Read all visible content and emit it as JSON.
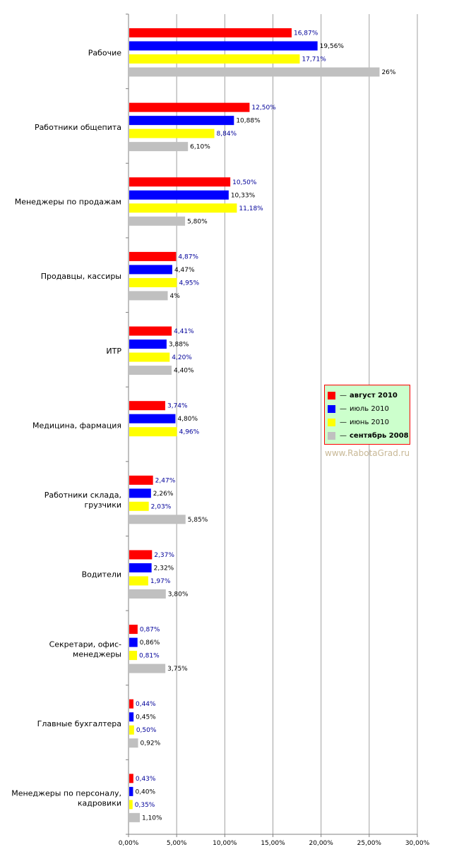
{
  "chart_data": {
    "type": "bar",
    "orientation": "horizontal",
    "categories": [
      "Рабочие",
      "Работники общепита",
      "Менеджеры по продажам",
      "Продавцы, кассиры",
      "ИТР",
      "Медицина, фармация",
      "Работники склада, грузчики",
      "Водители",
      "Секретари, офис-менеджеры",
      "Главные бухгалтера",
      "Менеджеры по персоналу, кадровики"
    ],
    "category_lines": [
      [
        "Рабочие"
      ],
      [
        "Работники общепита"
      ],
      [
        "Менеджеры по продажам"
      ],
      [
        "Продавцы, кассиры"
      ],
      [
        "ИТР"
      ],
      [
        "Медицина, фармация"
      ],
      [
        "Работники склада,",
        "грузчики"
      ],
      [
        "Водители"
      ],
      [
        "Секретари, офис-",
        "менеджеры"
      ],
      [
        "Главные бухгалтера"
      ],
      [
        "Менеджеры по персоналу,",
        "кадровики"
      ]
    ],
    "series": [
      {
        "name": "август 2010",
        "color": "#ff0000",
        "values": [
          16.87,
          12.5,
          10.5,
          4.87,
          4.41,
          3.74,
          2.47,
          2.37,
          0.87,
          0.44,
          0.43
        ],
        "labels": [
          "16,87%",
          "12,50%",
          "10,50%",
          "4,87%",
          "4,41%",
          "3,74%",
          "2,47%",
          "2,37%",
          "0,87%",
          "0,44%",
          "0,43%"
        ],
        "label_color": "#000099"
      },
      {
        "name": "июль 2010",
        "color": "#0000ff",
        "values": [
          19.56,
          10.88,
          10.33,
          4.47,
          3.88,
          4.8,
          2.26,
          2.32,
          0.86,
          0.45,
          0.4
        ],
        "labels": [
          "19,56%",
          "10,88%",
          "10,33%",
          "4,47%",
          "3,88%",
          "4,80%",
          "2,26%",
          "2,32%",
          "0,86%",
          "0,45%",
          "0,40%"
        ],
        "label_color": "#000000"
      },
      {
        "name": "июнь 2010",
        "color": "#ffff00",
        "values": [
          17.71,
          8.84,
          11.18,
          4.95,
          4.2,
          4.96,
          2.03,
          1.97,
          0.81,
          0.5,
          0.35
        ],
        "labels": [
          "17,71%",
          "8,84%",
          "11,18%",
          "4,95%",
          "4,20%",
          "4,96%",
          "2,03%",
          "1,97%",
          "0,81%",
          "0,50%",
          "0,35%"
        ],
        "label_color": "#000099"
      },
      {
        "name": "сентябрь 2008",
        "color": "#c0c0c0",
        "values": [
          26,
          6.1,
          5.8,
          4,
          4.4,
          null,
          5.85,
          3.8,
          3.75,
          0.92,
          1.1
        ],
        "labels": [
          "26%",
          "6,10%",
          "5,80%",
          "4%",
          "4,40%",
          "",
          "5,85%",
          "3,80%",
          "3,75%",
          "0,92%",
          "1,10%"
        ],
        "label_color": "#000000"
      }
    ],
    "xlim": [
      0,
      30
    ],
    "x_ticks": [
      0,
      5,
      10,
      15,
      20,
      25,
      30
    ],
    "x_tick_labels": [
      "0,00%",
      "5,00%",
      "10,00%",
      "15,00%",
      "20,00%",
      "25,00%",
      "30,00%"
    ],
    "grid": true,
    "legend_position": "right-middle"
  },
  "legend": {
    "items": [
      {
        "dash": "—",
        "label": "август 2010",
        "color": "#ff0000",
        "bold": true
      },
      {
        "dash": "—",
        "label": "июль 2010",
        "color": "#0000ff",
        "bold": false
      },
      {
        "dash": "—",
        "label": "июнь 2010",
        "color": "#ffff00",
        "bold": false
      },
      {
        "dash": "—",
        "label": "сентябрь 2008",
        "color": "#c0c0c0",
        "bold": true
      }
    ]
  },
  "watermark": "www.RabotaGrad.ru"
}
